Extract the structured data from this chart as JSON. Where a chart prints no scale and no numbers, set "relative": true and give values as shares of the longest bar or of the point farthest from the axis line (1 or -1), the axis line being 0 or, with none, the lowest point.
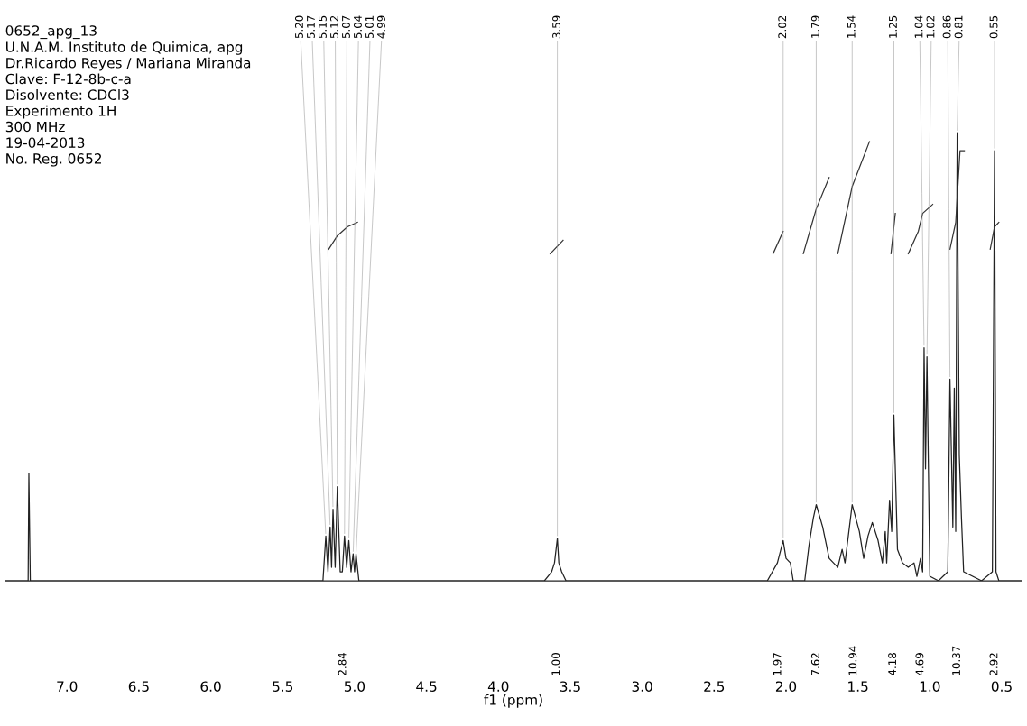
{
  "chart_data": {
    "type": "line",
    "relative": true,
    "xlabel": "f1 (ppm)",
    "xlim": [
      7.43,
      0.36
    ],
    "xticks": [
      {
        "value": 7.0,
        "label": "7.0"
      },
      {
        "value": 6.5,
        "label": "6.5"
      },
      {
        "value": 6.0,
        "label": "6.0"
      },
      {
        "value": 5.5,
        "label": "5.5"
      },
      {
        "value": 5.0,
        "label": "5.0"
      },
      {
        "value": 4.5,
        "label": "4.5"
      },
      {
        "value": 4.0,
        "label": "4.0"
      },
      {
        "value": 3.5,
        "label": "3.5"
      },
      {
        "value": 3.0,
        "label": "3.0"
      },
      {
        "value": 2.5,
        "label": "2.5"
      },
      {
        "value": 2.0,
        "label": "2.0"
      },
      {
        "value": 1.5,
        "label": "1.5"
      },
      {
        "value": 1.0,
        "label": "1.0"
      },
      {
        "value": 0.5,
        "label": "0.5"
      }
    ],
    "grid": false,
    "marker": "none",
    "line_style": "solid",
    "series": [
      {
        "color": "#222222",
        "x": [
          7.43,
          7.27,
          7.265,
          7.255,
          5.22,
          5.2,
          5.185,
          5.17,
          5.16,
          5.15,
          5.135,
          5.12,
          5.1,
          5.085,
          5.07,
          5.055,
          5.04,
          5.025,
          5.01,
          5.0,
          4.99,
          4.97,
          3.68,
          3.63,
          3.61,
          3.59,
          3.58,
          3.56,
          3.53,
          2.13,
          2.06,
          2.02,
          2.0,
          1.97,
          1.95,
          1.87,
          1.84,
          1.81,
          1.79,
          1.745,
          1.7,
          1.64,
          1.61,
          1.59,
          1.54,
          1.49,
          1.46,
          1.43,
          1.4,
          1.36,
          1.33,
          1.31,
          1.3,
          1.28,
          1.265,
          1.25,
          1.225,
          1.19,
          1.15,
          1.11,
          1.09,
          1.065,
          1.05,
          1.04,
          1.03,
          1.02,
          1.0,
          0.94,
          0.875,
          0.86,
          0.84,
          0.83,
          0.82,
          0.81,
          0.795,
          0.78,
          0.765,
          0.64,
          0.565,
          0.55,
          0.54,
          0.52,
          0.36
        ],
        "values": [
          0,
          0,
          0.24,
          0,
          0,
          0.1,
          0.02,
          0.12,
          0.03,
          0.16,
          0.03,
          0.21,
          0.02,
          0.02,
          0.1,
          0.03,
          0.09,
          0.02,
          0.06,
          0.02,
          0.06,
          0,
          0,
          0.02,
          0.04,
          0.095,
          0.04,
          0.02,
          0,
          0,
          0.04,
          0.09,
          0.05,
          0.04,
          0,
          0,
          0.08,
          0.14,
          0.17,
          0.12,
          0.05,
          0.03,
          0.07,
          0.04,
          0.17,
          0.11,
          0.05,
          0.1,
          0.13,
          0.09,
          0.04,
          0.11,
          0.04,
          0.18,
          0.11,
          0.37,
          0.07,
          0.04,
          0.03,
          0.04,
          0.01,
          0.05,
          0.02,
          0.52,
          0.25,
          0.5,
          0.01,
          0,
          0.02,
          0.45,
          0.12,
          0.43,
          0.11,
          1.0,
          0.28,
          0.14,
          0.02,
          0,
          0.02,
          0.96,
          0.02,
          0,
          0
        ]
      },
      {
        "color": "#333333",
        "x": [
          5.18,
          5.12,
          5.05,
          4.98,
          4.9,
          3.64,
          3.58,
          3.55,
          3.5,
          2.09,
          2.02,
          1.95,
          1.88,
          1.79,
          1.7,
          1.67,
          1.64,
          1.54,
          1.42,
          1.35,
          1.27,
          1.24,
          1.2,
          1.15,
          1.08,
          1.05,
          0.98,
          0.9,
          0.86,
          0.82,
          0.79,
          0.76,
          0.65,
          0.58,
          0.55,
          0.52
        ],
        "values": [
          0.74,
          0.77,
          0.79,
          0.8,
          null,
          0.73,
          0.75,
          0.76,
          null,
          0.73,
          0.78,
          null,
          0.73,
          0.83,
          0.9,
          null,
          0.73,
          0.88,
          0.98,
          null,
          0.73,
          0.82,
          null,
          0.73,
          0.78,
          0.82,
          0.84,
          null,
          0.74,
          0.8,
          0.96,
          0.96,
          null,
          0.74,
          0.79,
          0.8
        ]
      }
    ],
    "annotations": [
      "0652_apg_13\nU.N.A.M. Instituto de Quimica, apg\nDr.Ricardo Reyes / Mariana Miranda\nClave: F-12-8b-c-a\nDisolvente: CDCl3\nExperimento 1H\n300 MHz\n19-04-2013\nNo. Reg. 0652",
      {
        "text": "5.20",
        "x": 5.2,
        "y": 0.1
      },
      {
        "text": "5.17",
        "x": 5.17,
        "y": 0.12
      },
      {
        "text": "5.15",
        "x": 5.15,
        "y": 0.16
      },
      {
        "text": "5.12",
        "x": 5.12,
        "y": 0.21
      },
      {
        "text": "5.07",
        "x": 5.07,
        "y": 0.1
      },
      {
        "text": "5.04",
        "x": 5.04,
        "y": 0.09
      },
      {
        "text": "5.01",
        "x": 5.01,
        "y": 0.06
      },
      {
        "text": "4.99",
        "x": 4.99,
        "y": 0.06
      },
      {
        "text": "3.59",
        "x": 3.59,
        "y": 0.095
      },
      {
        "text": "2.02",
        "x": 2.02,
        "y": 0.09
      },
      {
        "text": "1.79",
        "x": 1.79,
        "y": 0.17
      },
      {
        "text": "1.54",
        "x": 1.54,
        "y": 0.17
      },
      {
        "text": "1.25",
        "x": 1.25,
        "y": 0.37
      },
      {
        "text": "1.04",
        "x": 1.04,
        "y": 0.52
      },
      {
        "text": "1.02",
        "x": 1.02,
        "y": 0.5
      },
      {
        "text": "0.86",
        "x": 0.86,
        "y": 0.45
      },
      {
        "text": "0.81",
        "x": 0.81,
        "y": 1.0
      },
      {
        "text": "0.55",
        "x": 0.55,
        "y": 0.96
      },
      "2.84",
      "1.00",
      "1.97",
      "7.62",
      "10.94",
      "4.18",
      "4.69",
      "10.37",
      "2.92"
    ]
  }
}
